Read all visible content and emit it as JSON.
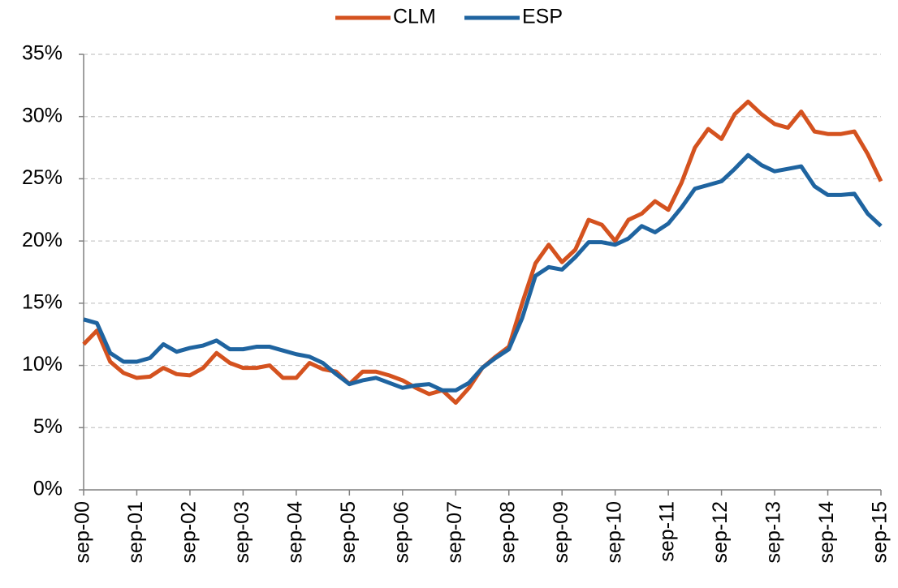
{
  "chart_data": {
    "type": "line",
    "categories": [
      "sep-00",
      null,
      null,
      null,
      "sep-01",
      null,
      null,
      null,
      "sep-02",
      null,
      null,
      null,
      "sep-03",
      null,
      null,
      null,
      "sep-04",
      null,
      null,
      null,
      "sep-05",
      null,
      null,
      null,
      "sep-06",
      null,
      null,
      null,
      "sep-07",
      null,
      null,
      null,
      "sep-08",
      null,
      null,
      null,
      "sep-09",
      null,
      null,
      null,
      "sep-10",
      null,
      null,
      null,
      "sep-11",
      null,
      null,
      null,
      "sep-12",
      null,
      null,
      null,
      "sep-13",
      null,
      null,
      null,
      "sep-14",
      null,
      null,
      null,
      "sep-15"
    ],
    "series": [
      {
        "name": "CLM",
        "color": "#d4521f",
        "values": [
          11.7,
          12.8,
          10.3,
          9.4,
          9.0,
          9.1,
          9.8,
          9.3,
          9.2,
          9.8,
          11.0,
          10.2,
          9.8,
          9.8,
          10.0,
          9.0,
          9.0,
          10.2,
          9.7,
          9.5,
          8.5,
          9.5,
          9.5,
          9.2,
          8.8,
          8.2,
          7.7,
          8.0,
          7.0,
          8.2,
          9.8,
          10.7,
          11.5,
          15.0,
          18.2,
          19.7,
          18.3,
          19.3,
          21.7,
          21.3,
          20.0,
          21.7,
          22.2,
          23.2,
          22.5,
          24.7,
          27.5,
          29.0,
          28.2,
          30.2,
          31.2,
          30.2,
          29.4,
          29.1,
          30.4,
          28.8,
          28.6,
          28.6,
          28.8,
          27.0,
          24.8
        ]
      },
      {
        "name": "ESP",
        "color": "#1f64a0",
        "values": [
          13.7,
          13.4,
          11.0,
          10.3,
          10.3,
          10.6,
          11.7,
          11.1,
          11.4,
          11.6,
          12.0,
          11.3,
          11.3,
          11.5,
          11.5,
          11.2,
          10.9,
          10.7,
          10.2,
          9.3,
          8.5,
          8.8,
          9.0,
          8.6,
          8.2,
          8.4,
          8.5,
          8.0,
          8.0,
          8.6,
          9.8,
          10.6,
          11.3,
          13.8,
          17.2,
          17.9,
          17.7,
          18.7,
          19.9,
          19.9,
          19.7,
          20.2,
          21.2,
          20.7,
          21.4,
          22.7,
          24.2,
          24.5,
          24.8,
          25.8,
          26.9,
          26.1,
          25.6,
          25.8,
          26.0,
          24.4,
          23.7,
          23.7,
          23.8,
          22.2,
          21.2
        ]
      }
    ],
    "ylim": [
      0,
      35
    ],
    "yticks": [
      {
        "value": 0,
        "label": "0%"
      },
      {
        "value": 5,
        "label": "5%"
      },
      {
        "value": 10,
        "label": "10%"
      },
      {
        "value": 15,
        "label": "15%"
      },
      {
        "value": 20,
        "label": "20%"
      },
      {
        "value": 25,
        "label": "25%"
      },
      {
        "value": 30,
        "label": "30%"
      },
      {
        "value": 35,
        "label": "35%"
      }
    ],
    "grid": true,
    "legend": "top"
  }
}
